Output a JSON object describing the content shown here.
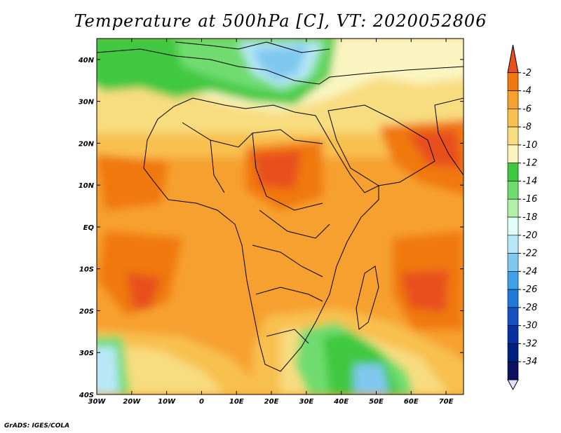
{
  "title": "Temperature at 500hPa [C], VT: 2020052806",
  "credit": "GrADS: IGES/COLA",
  "lat_labels": [
    "40N",
    "30N",
    "20N",
    "10N",
    "EQ",
    "10S",
    "20S",
    "30S",
    "40S"
  ],
  "lon_labels": [
    "30W",
    "20W",
    "10W",
    "0",
    "10E",
    "20E",
    "30E",
    "40E",
    "50E",
    "60E",
    "70E"
  ],
  "map_extent": {
    "lon": [
      -30,
      75
    ],
    "lat": [
      -40,
      45
    ]
  },
  "colorbar": {
    "labels": [
      "-2",
      "-4",
      "-6",
      "-8",
      "-10",
      "-12",
      "-14",
      "-16",
      "-18",
      "-20",
      "-22",
      "-24",
      "-26",
      "-28",
      "-30",
      "-32",
      "-34"
    ],
    "colors": [
      "#e8501e",
      "#f07810",
      "#f6a030",
      "#f8c050",
      "#f8dc80",
      "#faf5c0",
      "#40c840",
      "#70dc70",
      "#b0f0a8",
      "#e0fff8",
      "#b8e8f8",
      "#80c8f0",
      "#40a0e8",
      "#2078d8",
      "#1850c0",
      "#0830a0",
      "#002080",
      "#0c1260"
    ],
    "overflow_low_color": "#e0e0ff"
  }
}
